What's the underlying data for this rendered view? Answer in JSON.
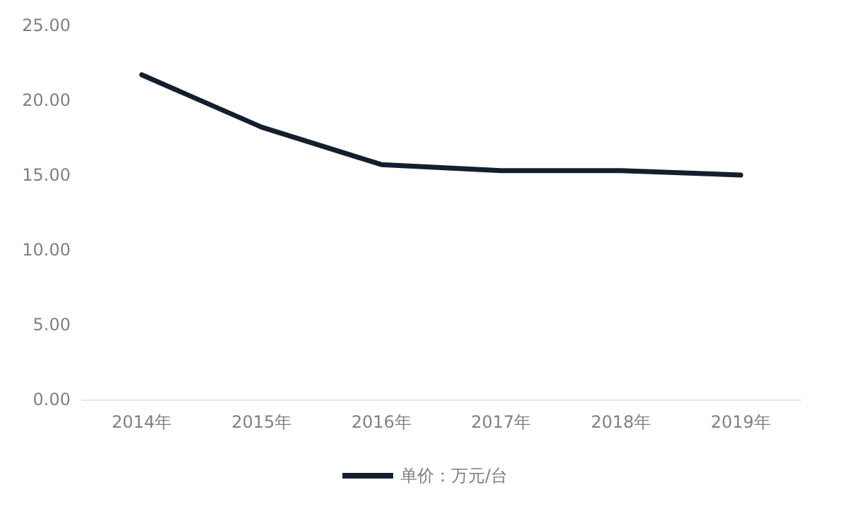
{
  "chart_data": {
    "type": "line",
    "categories": [
      "2014年",
      "2015年",
      "2016年",
      "2017年",
      "2018年",
      "2019年"
    ],
    "series": [
      {
        "name": "单价：万元/台",
        "color": "#141f2e",
        "values": [
          21.7,
          18.2,
          15.7,
          15.3,
          15.3,
          15.0
        ]
      }
    ],
    "ylim": [
      0,
      25
    ],
    "yticks": [
      {
        "value": 0,
        "label": "0.00"
      },
      {
        "value": 5,
        "label": "5.00"
      },
      {
        "value": 10,
        "label": "10.00"
      },
      {
        "value": 15,
        "label": "15.00"
      },
      {
        "value": 20,
        "label": "20.00"
      },
      {
        "value": 25,
        "label": "25.00"
      }
    ],
    "grid": false,
    "legend": "bottom",
    "marker": "none",
    "line_style": "solid"
  }
}
